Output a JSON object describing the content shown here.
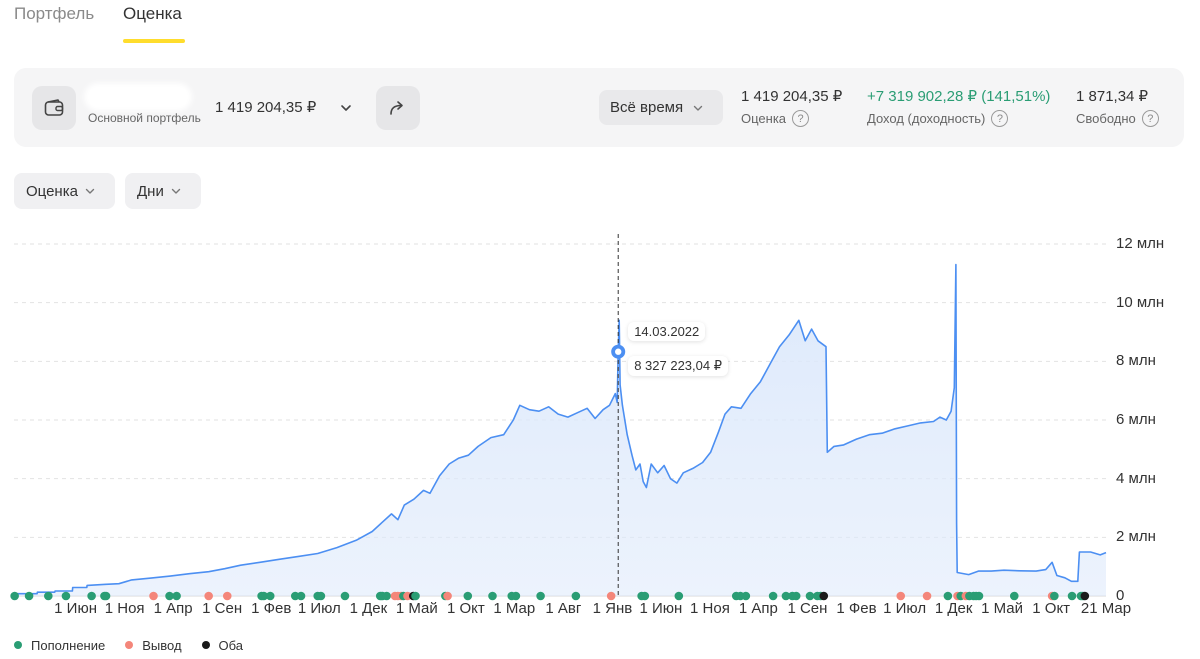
{
  "tabs": [
    {
      "label": "Портфель",
      "active": false
    },
    {
      "label": "Оценка",
      "active": true
    }
  ],
  "colors": {
    "accent": "#ffdd2d",
    "line": "#4c8ff2",
    "area": "#dde9fb",
    "positive": "#2a9d74",
    "deposit": "#2a9d74",
    "withdrawal": "#f4867a",
    "both": "#1a1a1a"
  },
  "header": {
    "wallet_icon": "wallet-icon",
    "portfolio_sub": "Основной портфель",
    "portfolio_value": "1 419 204,35 ₽",
    "share_icon": "share-arrow-icon",
    "period": "Всё время",
    "stats": {
      "estimate_value": "1 419 204,35 ₽",
      "estimate_label": "Оценка",
      "income_value": "+7 319 902,28 ₽ (141,51%)",
      "income_label": "Доход (доходность)",
      "free_value": "1 871,34 ₽",
      "free_label": "Свободно",
      "help_glyph": "?"
    }
  },
  "filters": {
    "metric": "Оценка",
    "interval": "Дни"
  },
  "chart_data": {
    "type": "area",
    "y_tick_labels": [
      "0",
      "2 млн",
      "4 млн",
      "6 млн",
      "8 млн",
      "10 млн",
      "12 млн"
    ],
    "ylim": [
      0,
      12000000
    ],
    "x_tick_labels": [
      "1 Июн",
      "1 Ноя",
      "1 Апр",
      "1 Сен",
      "1 Фев",
      "1 Июл",
      "1 Дек",
      "1 Май",
      "1 Окт",
      "1 Мар",
      "1 Авг",
      "1 Янв",
      "1 Июн",
      "1 Ноя",
      "1 Апр",
      "1 Сен",
      "1 Фев",
      "1 Июл",
      "1 Дек",
      "1 Май",
      "1 Окт",
      "21 Мар"
    ],
    "x_tick_days": [
      5,
      158,
      309,
      462,
      615,
      765,
      918,
      1069,
      1222,
      1373,
      1526,
      1679,
      1830,
      1983,
      2134,
      2287,
      2440,
      2590,
      2743,
      2894,
      3047,
      3218
    ],
    "x_domain_days": [
      -187,
      3218
    ],
    "series": [
      {
        "values": [
          [
            -187,
            80000
          ],
          [
            -115,
            80000
          ],
          [
            -114,
            130000
          ],
          [
            -60,
            130000
          ],
          [
            -59,
            170000
          ],
          [
            -5,
            170000
          ],
          [
            -4,
            290000
          ],
          [
            40,
            290000
          ],
          [
            41,
            360000
          ],
          [
            100,
            400000
          ],
          [
            140,
            420000
          ],
          [
            180,
            550000
          ],
          [
            240,
            610000
          ],
          [
            300,
            680000
          ],
          [
            360,
            760000
          ],
          [
            420,
            830000
          ],
          [
            470,
            930000
          ],
          [
            520,
            1050000
          ],
          [
            580,
            1150000
          ],
          [
            640,
            1250000
          ],
          [
            700,
            1350000
          ],
          [
            760,
            1450000
          ],
          [
            820,
            1650000
          ],
          [
            880,
            1900000
          ],
          [
            930,
            2200000
          ],
          [
            960,
            2500000
          ],
          [
            990,
            2800000
          ],
          [
            1010,
            2600000
          ],
          [
            1030,
            3100000
          ],
          [
            1060,
            3300000
          ],
          [
            1090,
            3600000
          ],
          [
            1110,
            3500000
          ],
          [
            1140,
            4100000
          ],
          [
            1170,
            4500000
          ],
          [
            1200,
            4700000
          ],
          [
            1230,
            4800000
          ],
          [
            1260,
            5100000
          ],
          [
            1300,
            5400000
          ],
          [
            1340,
            5500000
          ],
          [
            1370,
            6000000
          ],
          [
            1390,
            6500000
          ],
          [
            1420,
            6350000
          ],
          [
            1450,
            6300000
          ],
          [
            1480,
            6450000
          ],
          [
            1510,
            6200000
          ],
          [
            1540,
            6100000
          ],
          [
            1570,
            6250000
          ],
          [
            1600,
            6400000
          ],
          [
            1625,
            6050000
          ],
          [
            1650,
            6350000
          ],
          [
            1670,
            6500000
          ],
          [
            1688,
            6900000
          ],
          [
            1694,
            6600000
          ],
          [
            1697,
            8327223
          ],
          [
            1700,
            9400000
          ],
          [
            1703,
            7200000
          ],
          [
            1710,
            6500000
          ],
          [
            1725,
            5500000
          ],
          [
            1740,
            4800000
          ],
          [
            1752,
            4300000
          ],
          [
            1765,
            4500000
          ],
          [
            1775,
            3900000
          ],
          [
            1785,
            3700000
          ],
          [
            1800,
            4500000
          ],
          [
            1820,
            4200000
          ],
          [
            1840,
            4450000
          ],
          [
            1860,
            4000000
          ],
          [
            1880,
            3850000
          ],
          [
            1900,
            4200000
          ],
          [
            1930,
            4350000
          ],
          [
            1960,
            4550000
          ],
          [
            1985,
            4900000
          ],
          [
            2010,
            5600000
          ],
          [
            2030,
            6200000
          ],
          [
            2050,
            6450000
          ],
          [
            2080,
            6400000
          ],
          [
            2110,
            6900000
          ],
          [
            2140,
            7300000
          ],
          [
            2170,
            7900000
          ],
          [
            2200,
            8500000
          ],
          [
            2230,
            8900000
          ],
          [
            2260,
            9400000
          ],
          [
            2280,
            8700000
          ],
          [
            2300,
            9100000
          ],
          [
            2320,
            8700000
          ],
          [
            2345,
            8500000
          ],
          [
            2349,
            4900000
          ],
          [
            2370,
            5100000
          ],
          [
            2400,
            5150000
          ],
          [
            2440,
            5350000
          ],
          [
            2480,
            5500000
          ],
          [
            2520,
            5550000
          ],
          [
            2560,
            5700000
          ],
          [
            2600,
            5800000
          ],
          [
            2640,
            5900000
          ],
          [
            2680,
            5950000
          ],
          [
            2700,
            6100000
          ],
          [
            2720,
            6000000
          ],
          [
            2735,
            6300000
          ],
          [
            2745,
            7100000
          ],
          [
            2750,
            11300000
          ],
          [
            2752,
            2500000
          ],
          [
            2754,
            800000
          ],
          [
            2790,
            730000
          ],
          [
            2820,
            850000
          ],
          [
            2860,
            850000
          ],
          [
            2900,
            880000
          ],
          [
            2950,
            860000
          ],
          [
            3000,
            850000
          ],
          [
            3030,
            900000
          ],
          [
            3050,
            1150000
          ],
          [
            3065,
            700000
          ],
          [
            3090,
            620000
          ],
          [
            3110,
            500000
          ],
          [
            3130,
            500000
          ],
          [
            3135,
            1500000
          ],
          [
            3170,
            1500000
          ],
          [
            3200,
            1400000
          ],
          [
            3218,
            1480000
          ]
        ]
      }
    ],
    "cursor": {
      "day": 1697
    },
    "tooltip": {
      "date": "14.03.2022",
      "value": "8 327 223,04 ₽"
    },
    "operations": [
      {
        "day": -185,
        "kind": "deposit"
      },
      {
        "day": -140,
        "kind": "deposit"
      },
      {
        "day": -80,
        "kind": "deposit"
      },
      {
        "day": -25,
        "kind": "deposit"
      },
      {
        "day": 55,
        "kind": "deposit"
      },
      {
        "day": 95,
        "kind": "deposit"
      },
      {
        "day": 100,
        "kind": "deposit"
      },
      {
        "day": 248,
        "kind": "withdrawal"
      },
      {
        "day": 298,
        "kind": "deposit"
      },
      {
        "day": 320,
        "kind": "deposit"
      },
      {
        "day": 420,
        "kind": "withdrawal"
      },
      {
        "day": 478,
        "kind": "withdrawal"
      },
      {
        "day": 585,
        "kind": "deposit"
      },
      {
        "day": 592,
        "kind": "deposit"
      },
      {
        "day": 612,
        "kind": "deposit"
      },
      {
        "day": 690,
        "kind": "deposit"
      },
      {
        "day": 708,
        "kind": "deposit"
      },
      {
        "day": 760,
        "kind": "deposit"
      },
      {
        "day": 770,
        "kind": "deposit"
      },
      {
        "day": 845,
        "kind": "deposit"
      },
      {
        "day": 955,
        "kind": "deposit"
      },
      {
        "day": 962,
        "kind": "deposit"
      },
      {
        "day": 975,
        "kind": "deposit"
      },
      {
        "day": 1001,
        "kind": "withdrawal"
      },
      {
        "day": 1010,
        "kind": "withdrawal"
      },
      {
        "day": 1020,
        "kind": "withdrawal"
      },
      {
        "day": 1027,
        "kind": "deposit"
      },
      {
        "day": 1040,
        "kind": "withdrawal"
      },
      {
        "day": 1058,
        "kind": "both"
      },
      {
        "day": 1065,
        "kind": "deposit"
      },
      {
        "day": 1158,
        "kind": "deposit"
      },
      {
        "day": 1165,
        "kind": "withdrawal"
      },
      {
        "day": 1228,
        "kind": "deposit"
      },
      {
        "day": 1305,
        "kind": "deposit"
      },
      {
        "day": 1365,
        "kind": "deposit"
      },
      {
        "day": 1378,
        "kind": "deposit"
      },
      {
        "day": 1455,
        "kind": "deposit"
      },
      {
        "day": 1565,
        "kind": "deposit"
      },
      {
        "day": 1675,
        "kind": "withdrawal"
      },
      {
        "day": 1770,
        "kind": "deposit"
      },
      {
        "day": 1780,
        "kind": "deposit"
      },
      {
        "day": 1886,
        "kind": "deposit"
      },
      {
        "day": 2065,
        "kind": "deposit"
      },
      {
        "day": 2078,
        "kind": "deposit"
      },
      {
        "day": 2095,
        "kind": "deposit"
      },
      {
        "day": 2180,
        "kind": "deposit"
      },
      {
        "day": 2220,
        "kind": "deposit"
      },
      {
        "day": 2240,
        "kind": "deposit"
      },
      {
        "day": 2252,
        "kind": "deposit"
      },
      {
        "day": 2295,
        "kind": "deposit"
      },
      {
        "day": 2318,
        "kind": "deposit"
      },
      {
        "day": 2328,
        "kind": "deposit"
      },
      {
        "day": 2338,
        "kind": "both"
      },
      {
        "day": 2578,
        "kind": "withdrawal"
      },
      {
        "day": 2660,
        "kind": "withdrawal"
      },
      {
        "day": 2725,
        "kind": "deposit"
      },
      {
        "day": 2755,
        "kind": "withdrawal"
      },
      {
        "day": 2765,
        "kind": "deposit"
      },
      {
        "day": 2781,
        "kind": "withdrawal"
      },
      {
        "day": 2792,
        "kind": "deposit"
      },
      {
        "day": 2805,
        "kind": "deposit"
      },
      {
        "day": 2813,
        "kind": "deposit"
      },
      {
        "day": 2822,
        "kind": "deposit"
      },
      {
        "day": 2932,
        "kind": "deposit"
      },
      {
        "day": 3050,
        "kind": "withdrawal"
      },
      {
        "day": 3057,
        "kind": "deposit"
      },
      {
        "day": 3112,
        "kind": "deposit"
      },
      {
        "day": 3140,
        "kind": "deposit"
      },
      {
        "day": 3146,
        "kind": "deposit"
      },
      {
        "day": 3152,
        "kind": "both"
      }
    ]
  },
  "legend": [
    {
      "label": "Пополнение",
      "kind": "deposit"
    },
    {
      "label": "Вывод",
      "kind": "withdrawal"
    },
    {
      "label": "Оба",
      "kind": "both"
    }
  ]
}
